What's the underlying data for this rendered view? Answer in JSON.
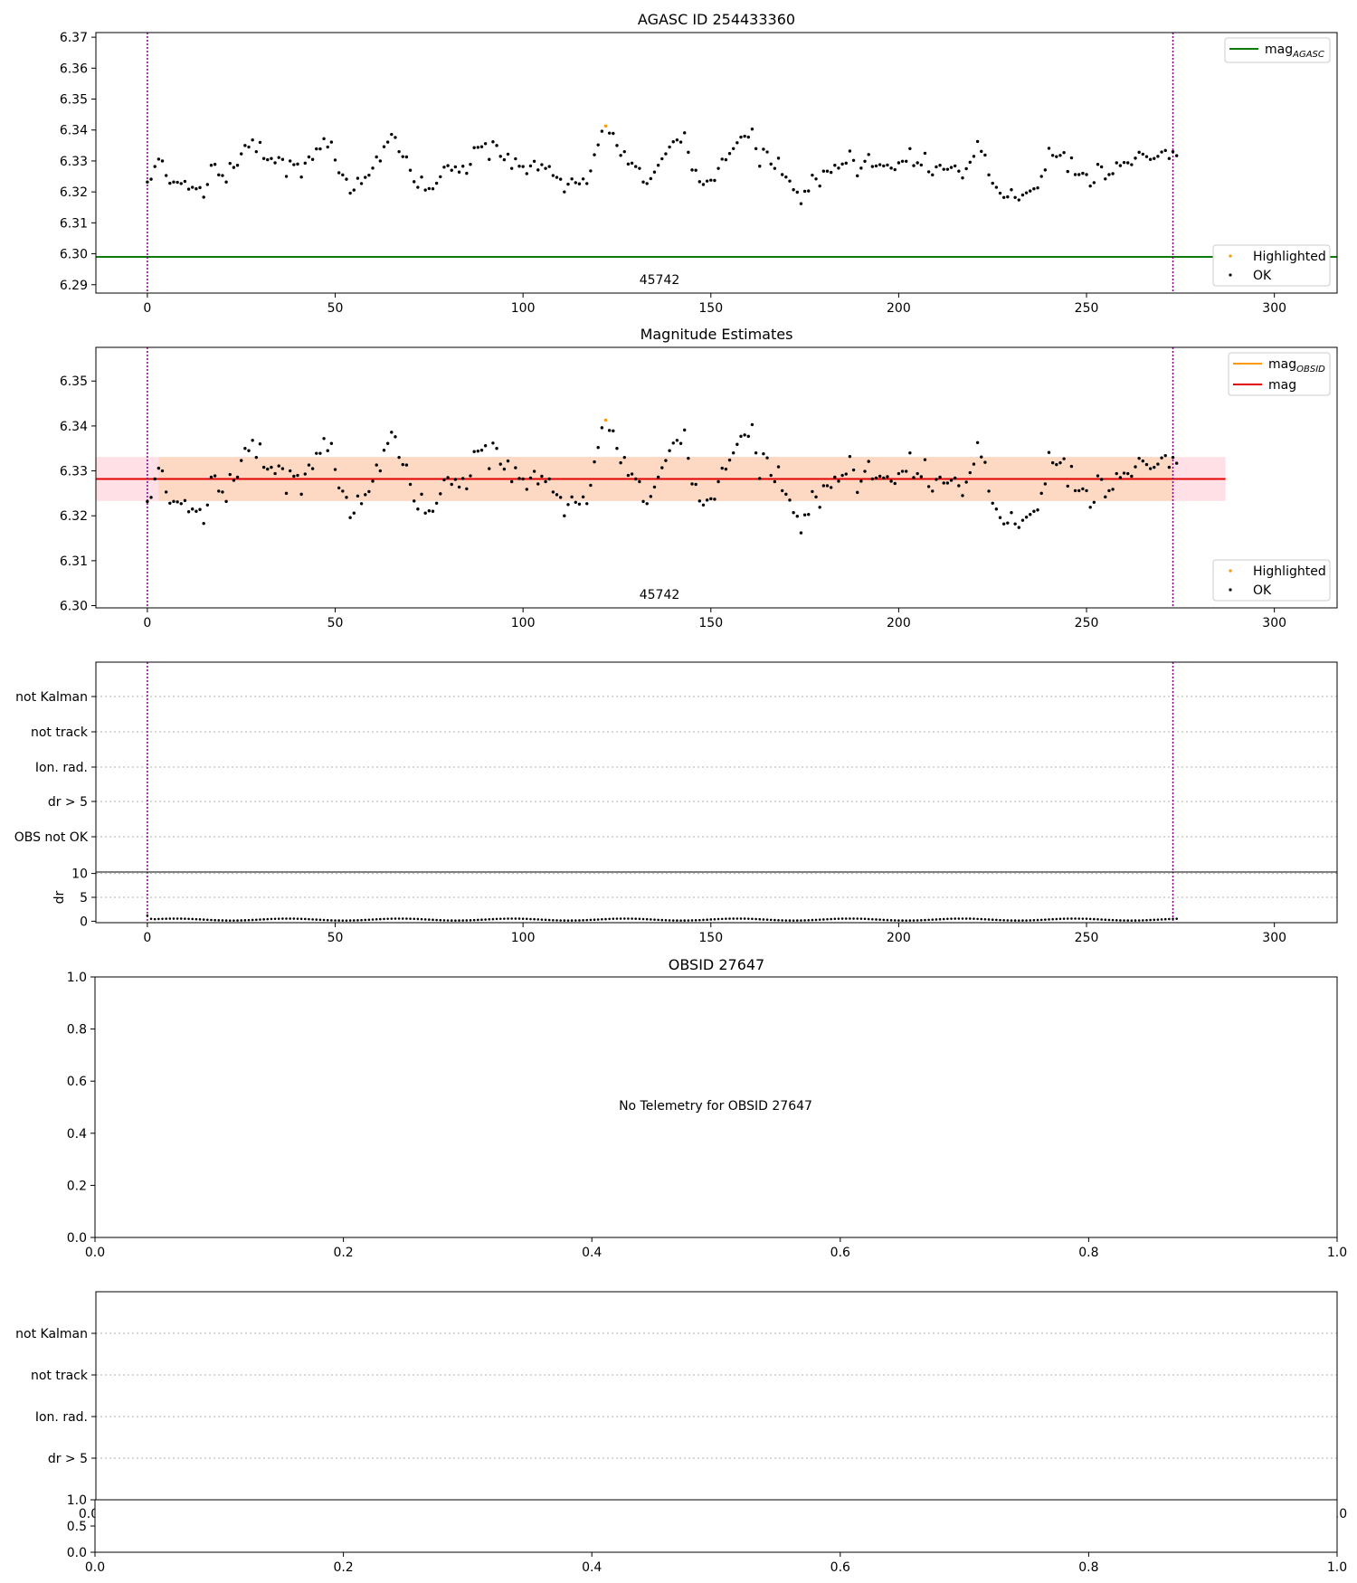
{
  "chart_data": [
    {
      "type": "scatter",
      "title": "AGASC ID 254433360",
      "xlim": [
        -13.7,
        316.7
      ],
      "ylim": [
        6.2873,
        6.3715
      ],
      "xticks": [
        0,
        50,
        100,
        150,
        200,
        250,
        300
      ],
      "yticks": [
        6.29,
        6.3,
        6.31,
        6.32,
        6.33,
        6.34,
        6.35,
        6.36,
        6.37
      ],
      "vlines": [
        0,
        273
      ],
      "annotation": "45742",
      "hline": {
        "label": "mag",
        "label_sub": "AGASC",
        "value": 6.299
      },
      "legend_upper": "upper right",
      "legend_lower": "lower right",
      "series_labels": [
        "Highlighted",
        "OK"
      ],
      "highlighted_points": [
        [
          122,
          6.3413
        ]
      ],
      "ok_points_from": "shared_series"
    },
    {
      "type": "scatter",
      "title": "Magnitude Estimates",
      "xlim": [
        -13.7,
        316.7
      ],
      "ylim": [
        6.2995,
        6.3575
      ],
      "xticks": [
        0,
        50,
        100,
        150,
        200,
        250,
        300
      ],
      "yticks": [
        6.3,
        6.31,
        6.32,
        6.33,
        6.34,
        6.35
      ],
      "vlines": [
        0,
        273
      ],
      "annotation": "45742",
      "mag_obsid": {
        "label": "mag",
        "label_sub": "OBSID",
        "value": 6.3282,
        "low": 6.3233,
        "high": 6.3331,
        "x_range": [
          3,
          273
        ]
      },
      "mag": {
        "label": "mag",
        "value": 6.3282,
        "low": 6.3233,
        "high": 6.3331,
        "x_range": [
          -13.7,
          287
        ]
      },
      "legend_upper": "upper right",
      "legend_lower": "lower right",
      "series_labels": [
        "Highlighted",
        "OK"
      ],
      "highlighted_points": [
        [
          122,
          6.3413
        ]
      ],
      "ok_points_from": "shared_series"
    },
    {
      "type": "scatter",
      "flag_labels": [
        "not Kalman",
        "not track",
        "Ion. rad.",
        "dr > 5",
        "OBS not OK"
      ],
      "dr_ylabel": "dr",
      "dr_yticks": [
        0,
        5,
        10
      ],
      "dr_ylim": [
        -0.3,
        10.3
      ],
      "xlim": [
        -13.7,
        316.7
      ],
      "xticks": [
        0,
        50,
        100,
        150,
        200,
        250,
        300
      ],
      "vlines": [
        0,
        273
      ],
      "dr_values": {
        "x_start": 0,
        "first": [
          1.2,
          0.5
        ],
        "typical_low": 0.15,
        "typical_high": 0.55
      }
    },
    {
      "type": "scatter",
      "title": "OBSID 27647",
      "message": "No Telemetry for OBSID 27647",
      "xlim": [
        0,
        1
      ],
      "ylim": [
        0,
        1
      ],
      "xticks": [
        "0.0",
        "0.2",
        "0.4",
        "0.6",
        "0.8",
        "1.0"
      ],
      "yticks": [
        "0.0",
        "0.2",
        "0.4",
        "0.6",
        "0.8",
        "1.0"
      ]
    },
    {
      "type": "scatter",
      "flag_labels": [
        "not Kalman",
        "not track",
        "Ion. rad.",
        "dr > 5"
      ],
      "xlim": [
        0,
        1
      ],
      "xticks": [
        "0.0",
        "0.2",
        "0.4",
        "0.6",
        "0.8",
        "1.0"
      ],
      "overlap_tick_left": "0.0",
      "overlap_tick_right": "1.0",
      "sub_yticks": [
        "0.0",
        "0.5",
        "1.0"
      ]
    }
  ],
  "shared_series": {
    "x_start": 0,
    "mag_values": [
      6.3232,
      6.3241,
      6.3282,
      6.3306,
      6.33,
      6.3253,
      6.3228,
      6.3232,
      6.3231,
      6.3227,
      6.3234,
      6.3209,
      6.3215,
      6.321,
      6.3214,
      6.3183,
      6.3224,
      6.3286,
      6.3289,
      6.3255,
      6.3253,
      6.3232,
      6.3292,
      6.3279,
      6.3286,
      6.3323,
      6.335,
      6.3345,
      6.3368,
      6.333,
      6.336,
      6.3308,
      6.3304,
      6.3308,
      6.3294,
      6.3311,
      6.3305,
      6.325,
      6.33,
      6.3288,
      6.329,
      6.3248,
      6.3293,
      6.3313,
      6.3305,
      6.3339,
      6.3339,
      6.3372,
      6.3345,
      6.3361,
      6.3303,
      6.3262,
      6.3255,
      6.3241,
      6.3196,
      6.3206,
      6.3244,
      6.3227,
      6.3247,
      6.3254,
      6.3277,
      6.3313,
      6.33,
      6.3346,
      6.3361,
      6.3386,
      6.3376,
      6.333,
      6.3314,
      6.3313,
      6.327,
      6.3233,
      6.3215,
      6.3248,
      6.3206,
      6.3211,
      6.321,
      6.3228,
      6.3249,
      6.328,
      6.3285,
      6.327,
      6.3281,
      6.3264,
      6.3283,
      6.326,
      6.3289,
      6.3343,
      6.3344,
      6.3346,
      6.3356,
      6.3305,
      6.3362,
      6.335,
      6.3315,
      6.3304,
      6.3322,
      6.3276,
      6.3307,
      6.3283,
      6.3282,
      6.3259,
      6.3284,
      6.3299,
      6.3271,
      6.3288,
      6.3276,
      6.3282,
      6.3253,
      6.3247,
      6.3241,
      6.32,
      6.3225,
      6.3242,
      6.323,
      6.3226,
      6.3242,
      6.3227,
      6.3268,
      6.332,
      6.3352,
      6.3396,
      6.3413,
      6.339,
      6.3389,
      6.335,
      6.3318,
      6.333,
      6.329,
      6.3293,
      6.3282,
      6.3276,
      6.3232,
      6.3227,
      6.3243,
      6.3264,
      6.3286,
      6.3307,
      6.3323,
      6.3345,
      6.3362,
      6.3368,
      6.3361,
      6.3391,
      6.3328,
      6.3271,
      6.327,
      6.3233,
      6.3224,
      6.3235,
      6.3238,
      6.3237,
      6.3276,
      6.3306,
      6.3304,
      6.3324,
      6.334,
      6.3359,
      6.3377,
      6.338,
      6.3377,
      6.3403,
      6.334,
      6.3283,
      6.3338,
      6.3329,
      6.329,
      6.3276,
      6.3309,
      6.3256,
      6.3248,
      6.3235,
      6.3207,
      6.3199,
      6.3162,
      6.3202,
      6.3203,
      6.3254,
      6.3242,
      6.3219,
      6.3267,
      6.3267,
      6.3263,
      6.3286,
      6.3277,
      6.329,
      6.3293,
      6.3332,
      6.3302,
      6.3252,
      6.3277,
      6.3299,
      6.3321,
      6.3282,
      6.3284,
      6.3288,
      6.3284,
      6.3287,
      6.3277,
      6.3272,
      6.3294,
      6.3299,
      6.3299,
      6.334,
      6.3285,
      6.3294,
      6.3287,
      6.3325,
      6.3265,
      6.3255,
      6.3281,
      6.3286,
      6.3273,
      6.3273,
      6.3279,
      6.3284,
      6.3267,
      6.3245,
      6.3275,
      6.3296,
      6.3315,
      6.3363,
      6.3331,
      6.3319,
      6.3255,
      6.3228,
      6.3215,
      6.3196,
      6.3182,
      6.3184,
      6.3207,
      6.3182,
      6.3174,
      6.319,
      6.3197,
      6.3203,
      6.321,
      6.3213,
      6.325,
      6.3271,
      6.3341,
      6.3318,
      6.3314,
      6.3318,
      6.3327,
      6.3266,
      6.331,
      6.3256,
      6.3256,
      6.326,
      6.3256,
      6.3219,
      6.323,
      6.3289,
      6.3281,
      6.3242,
      6.3256,
      6.3259,
      6.3294,
      6.3285,
      6.3295,
      6.3294,
      6.3288,
      6.3309,
      6.3328,
      6.3322,
      6.3314,
      6.3305,
      6.3308,
      6.3315,
      6.3329,
      6.3334,
      6.3308,
      6.333,
      6.3317
    ]
  }
}
